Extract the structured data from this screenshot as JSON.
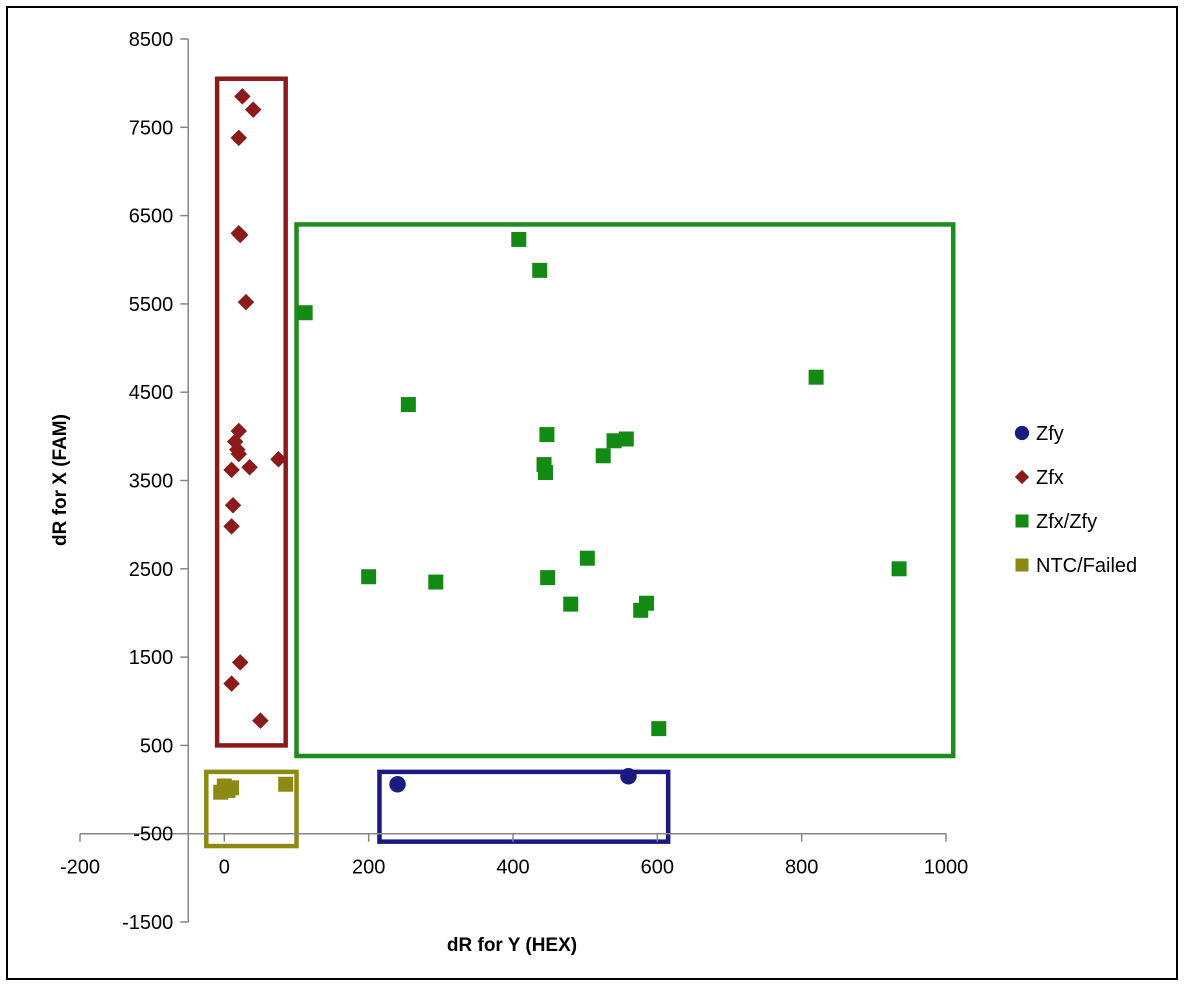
{
  "chart_data": {
    "type": "scatter",
    "xlabel": "dR for Y (HEX)",
    "ylabel": "dR  for X (FAM)",
    "xlim": [
      -200,
      1000
    ],
    "ylim": [
      -1500,
      8500
    ],
    "x_ticks": [
      -200,
      0,
      200,
      400,
      600,
      800,
      1000
    ],
    "y_ticks": [
      -1500,
      -500,
      500,
      1500,
      2500,
      3500,
      4500,
      5500,
      6500,
      7500,
      8500
    ],
    "axis_crossing": {
      "x_axis_at_y": -500,
      "y_axis_at_x": -50
    },
    "grid": false,
    "legend_position": "right",
    "series": [
      {
        "name": "Zfy",
        "marker": "circle",
        "color": "#1a1a80",
        "x": [
          240,
          560
        ],
        "y": [
          60,
          150
        ]
      },
      {
        "name": "Zfx",
        "marker": "diamond",
        "color": "#8b1a1a",
        "x": [
          25,
          40,
          20,
          20,
          22,
          30,
          20,
          15,
          18,
          20,
          10,
          35,
          75,
          12,
          10,
          22,
          10,
          50
        ],
        "y": [
          7850,
          7700,
          7380,
          6300,
          6280,
          5520,
          4060,
          3940,
          3850,
          3800,
          3620,
          3650,
          3740,
          3220,
          2980,
          1440,
          1200,
          780
        ]
      },
      {
        "name": "Zfx/Zfy",
        "marker": "square",
        "color": "#138a13",
        "x": [
          408,
          437,
          112,
          820,
          255,
          447,
          540,
          557,
          525,
          443,
          445,
          935,
          200,
          293,
          448,
          503,
          480,
          585,
          577,
          602
        ],
        "y": [
          6230,
          5880,
          5400,
          4670,
          4360,
          4020,
          3950,
          3970,
          3780,
          3680,
          3590,
          2500,
          2410,
          2350,
          2400,
          2620,
          2100,
          2110,
          2030,
          690
        ]
      },
      {
        "name": "NTC/Failed",
        "marker": "square",
        "color": "#8c8a14",
        "x": [
          -5,
          0,
          2,
          5,
          10,
          85
        ],
        "y": [
          -30,
          40,
          0,
          -10,
          20,
          60
        ]
      }
    ],
    "boxes": [
      {
        "label": "Zfx",
        "color": "#8b1a1a",
        "x": [
          -10,
          85
        ],
        "y": [
          500,
          8050
        ]
      },
      {
        "label": "Zfx/Zfy",
        "color": "#1e8c1e",
        "x": [
          100,
          1010
        ],
        "y": [
          380,
          6400
        ]
      },
      {
        "label": "NTC/Failed",
        "color": "#8c8a14",
        "x": [
          -25,
          100
        ],
        "y": [
          -640,
          200
        ]
      },
      {
        "label": "Zfy",
        "color": "#1a1a80",
        "x": [
          215,
          615
        ],
        "y": [
          -590,
          200
        ]
      }
    ]
  }
}
